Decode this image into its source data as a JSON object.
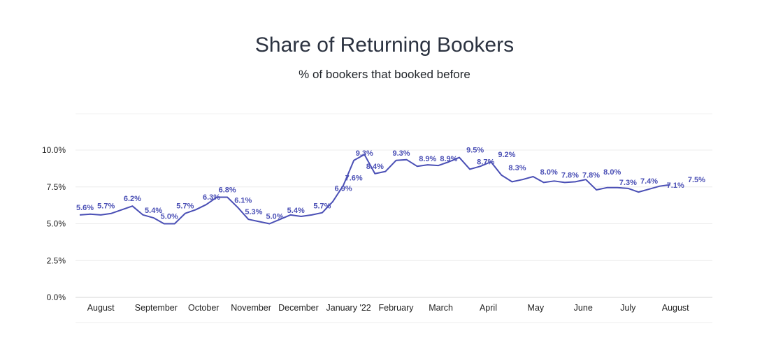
{
  "chart_data": {
    "type": "line",
    "title": "Share of Returning Bookers",
    "subtitle": "% of bookers that booked before",
    "ylim": [
      0,
      10
    ],
    "yticks": [
      "0.0%",
      "2.5%",
      "5.0%",
      "7.5%",
      "10.0%"
    ],
    "ytick_values": [
      0,
      2.5,
      5,
      7.5,
      10
    ],
    "xlim": [
      0,
      60
    ],
    "xtick_labels": [
      "August",
      "September",
      "October",
      "November",
      "December",
      "January '22",
      "February",
      "March",
      "April",
      "May",
      "June",
      "July",
      "August"
    ],
    "xtick_positions": [
      2,
      7.25,
      11.75,
      16.25,
      20.75,
      25.5,
      30,
      34.25,
      38.75,
      43.25,
      47.75,
      52,
      56.5
    ],
    "grid": true,
    "line_color": "#4a4fb5",
    "series": [
      {
        "values": [
          5.6,
          5.65,
          5.6,
          5.7,
          5.95,
          6.2,
          5.6,
          5.4,
          5.0,
          5.0,
          5.7,
          5.95,
          6.3,
          6.8,
          6.8,
          6.1,
          5.3,
          5.15,
          5.0,
          5.3,
          5.6,
          5.5,
          5.6,
          5.75,
          6.5,
          7.6,
          9.3,
          9.7,
          8.4,
          8.55,
          9.3,
          9.35,
          8.9,
          9.0,
          8.95,
          9.2,
          9.5,
          8.7,
          8.9,
          9.2,
          8.3,
          7.85,
          8.0,
          8.2,
          7.8,
          7.9,
          7.8,
          7.85,
          8.0,
          7.3,
          7.45,
          7.45,
          7.4,
          7.15,
          7.35,
          7.55,
          7.65
        ]
      }
    ],
    "data_labels": [
      {
        "x": 0.5,
        "y": 5.6,
        "text": "5.6%"
      },
      {
        "x": 2.5,
        "y": 5.7,
        "text": "5.7%"
      },
      {
        "x": 5,
        "y": 6.2,
        "text": "6.2%"
      },
      {
        "x": 7,
        "y": 5.4,
        "text": "5.4%"
      },
      {
        "x": 8.5,
        "y": 5.0,
        "text": "5.0%"
      },
      {
        "x": 10,
        "y": 5.7,
        "text": "5.7%"
      },
      {
        "x": 12.5,
        "y": 6.3,
        "text": "6.3%"
      },
      {
        "x": 14,
        "y": 6.8,
        "text": "6.8%"
      },
      {
        "x": 15.5,
        "y": 6.1,
        "text": "6.1%"
      },
      {
        "x": 16.5,
        "y": 5.3,
        "text": "5.3%"
      },
      {
        "x": 18.5,
        "y": 5.0,
        "text": "5.0%"
      },
      {
        "x": 20.5,
        "y": 5.4,
        "text": "5.4%"
      },
      {
        "x": 23,
        "y": 5.7,
        "text": "5.7%"
      },
      {
        "x": 25,
        "y": 6.9,
        "text": "6.9%"
      },
      {
        "x": 26,
        "y": 7.6,
        "text": "7.6%"
      },
      {
        "x": 27,
        "y": 9.3,
        "text": "9.3%"
      },
      {
        "x": 28,
        "y": 8.4,
        "text": "8.4%"
      },
      {
        "x": 30.5,
        "y": 9.3,
        "text": "9.3%"
      },
      {
        "x": 33,
        "y": 8.9,
        "text": "8.9%"
      },
      {
        "x": 35,
        "y": 8.9,
        "text": "8.9%"
      },
      {
        "x": 37.5,
        "y": 9.5,
        "text": "9.5%"
      },
      {
        "x": 38.5,
        "y": 8.7,
        "text": "8.7%"
      },
      {
        "x": 40.5,
        "y": 9.2,
        "text": "9.2%"
      },
      {
        "x": 41.5,
        "y": 8.3,
        "text": "8.3%"
      },
      {
        "x": 44.5,
        "y": 8.0,
        "text": "8.0%"
      },
      {
        "x": 46.5,
        "y": 7.8,
        "text": "7.8%"
      },
      {
        "x": 48.5,
        "y": 7.8,
        "text": "7.8%"
      },
      {
        "x": 50.5,
        "y": 8.0,
        "text": "8.0%"
      },
      {
        "x": 52,
        "y": 7.3,
        "text": "7.3%"
      },
      {
        "x": 54,
        "y": 7.4,
        "text": "7.4%"
      },
      {
        "x": 56.5,
        "y": 7.1,
        "text": "7.1%"
      },
      {
        "x": 58.5,
        "y": 7.5,
        "text": "7.5%"
      }
    ]
  }
}
